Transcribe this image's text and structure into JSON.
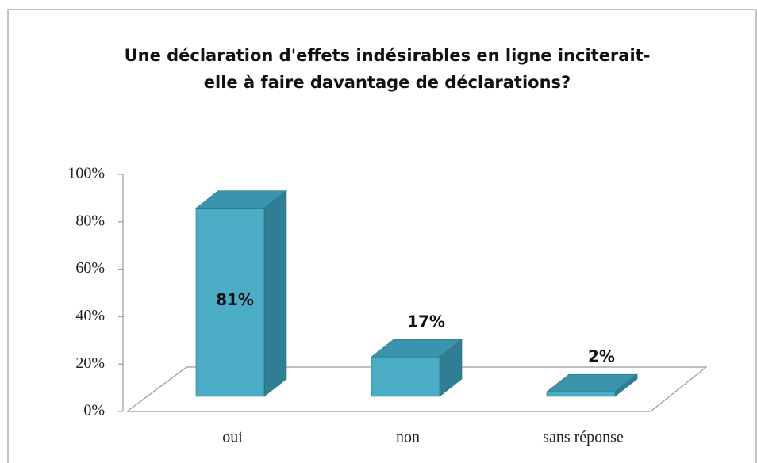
{
  "chart_data": {
    "type": "bar3d",
    "title": [
      "Une déclaration d'effets indésirables en ligne inciterait-",
      "elle à faire davantage de déclarations?"
    ],
    "categories": [
      "oui",
      "non",
      "sans réponse"
    ],
    "values": [
      81,
      17,
      2
    ],
    "value_labels": [
      "81%",
      "17%",
      "2%"
    ],
    "color": "#4bacc6",
    "ylim": [
      0,
      100
    ],
    "yticks": [
      {
        "value": 0,
        "label": "0%"
      },
      {
        "value": 20,
        "label": "20%"
      },
      {
        "value": 40,
        "label": "40%"
      },
      {
        "value": 60,
        "label": "60%"
      },
      {
        "value": 80,
        "label": "80%"
      },
      {
        "value": 100,
        "label": "100%"
      }
    ]
  }
}
